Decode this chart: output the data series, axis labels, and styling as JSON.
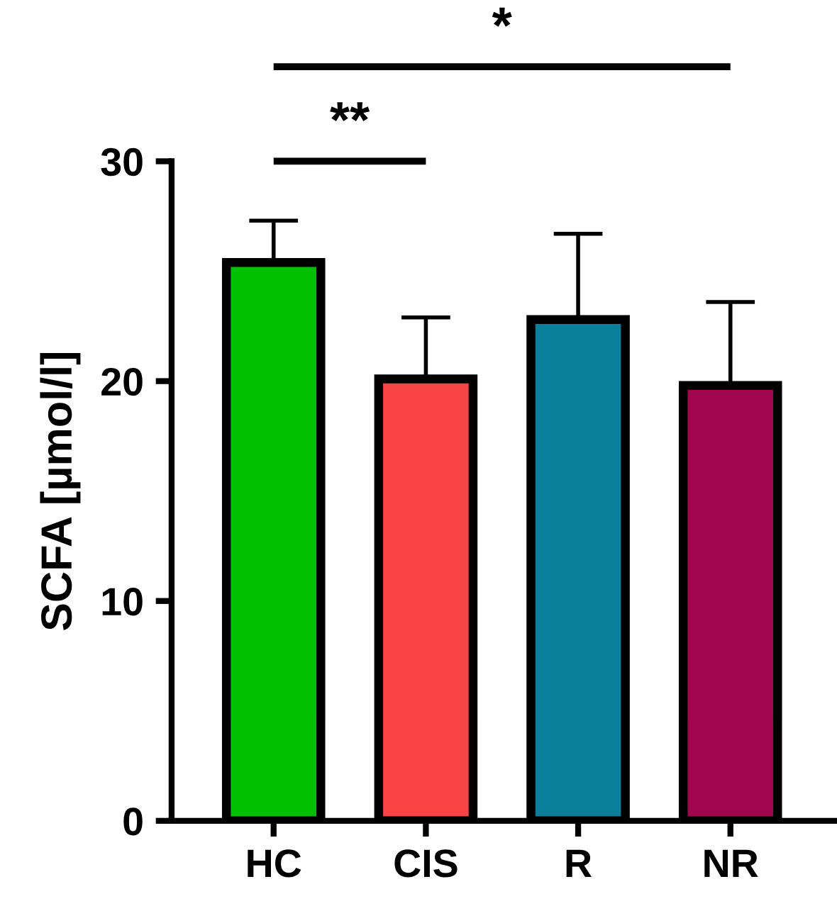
{
  "chart_data": {
    "type": "bar",
    "ylabel": "SCFA [µmol/l]",
    "categories": [
      "HC",
      "CIS",
      "R",
      "NR"
    ],
    "values": [
      25.4,
      20.1,
      22.8,
      19.8
    ],
    "colors": [
      "#00c000",
      "#f84444",
      "#0a7f9b",
      "#a0064e"
    ],
    "errors": [
      [
        25.4,
        27.3
      ],
      [
        20.1,
        22.9
      ],
      [
        22.8,
        26.7
      ],
      [
        19.8,
        23.6
      ]
    ],
    "ylim": [
      0,
      30
    ],
    "yticks": [
      0,
      10,
      20,
      30
    ],
    "grid": false,
    "legend": false,
    "annotations": [
      "**",
      "*"
    ]
  }
}
